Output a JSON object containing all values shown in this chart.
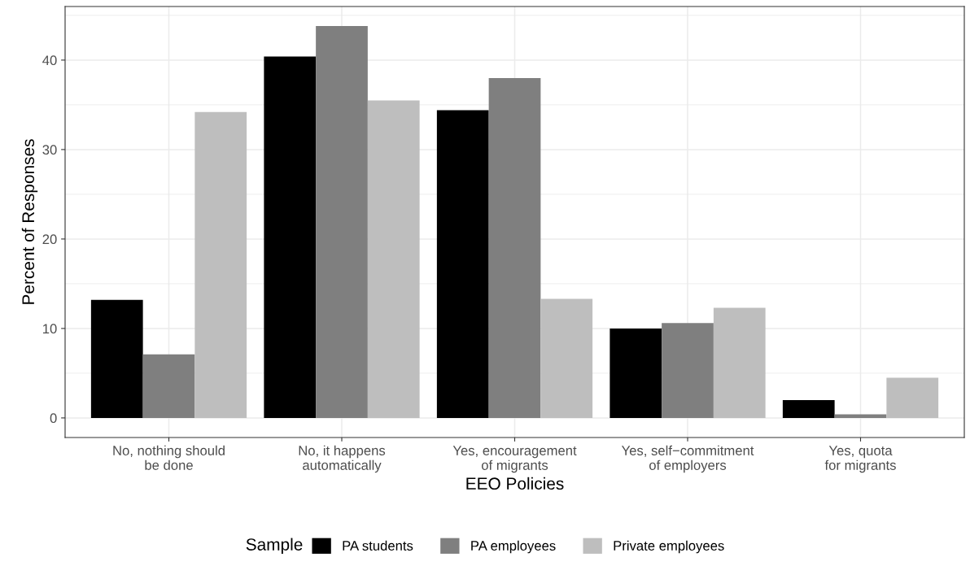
{
  "chart_data": {
    "type": "bar",
    "xlabel": "EEO Policies",
    "ylabel": "Percent of Responses",
    "legend_title": "Sample",
    "categories": [
      "No, nothing should\nbe done",
      "No, it happens\nautomatically",
      "Yes, encouragement\nof migrants",
      "Yes, self−commitment\nof employers",
      "Yes, quota\nfor migrants"
    ],
    "series": [
      {
        "name": "PA students",
        "color": "#000000",
        "values": [
          13.2,
          40.4,
          34.4,
          10.0,
          2.0
        ]
      },
      {
        "name": "PA employees",
        "color": "#7f7f7f",
        "values": [
          7.1,
          43.8,
          38.0,
          10.6,
          0.4
        ]
      },
      {
        "name": "Private employees",
        "color": "#bebebe",
        "values": [
          34.2,
          35.5,
          13.3,
          12.3,
          4.5
        ]
      }
    ],
    "ylim": [
      -2.19,
      45.99
    ],
    "yticks": [
      0,
      10,
      20,
      30,
      40
    ],
    "grid": true,
    "legend": "bottom"
  }
}
